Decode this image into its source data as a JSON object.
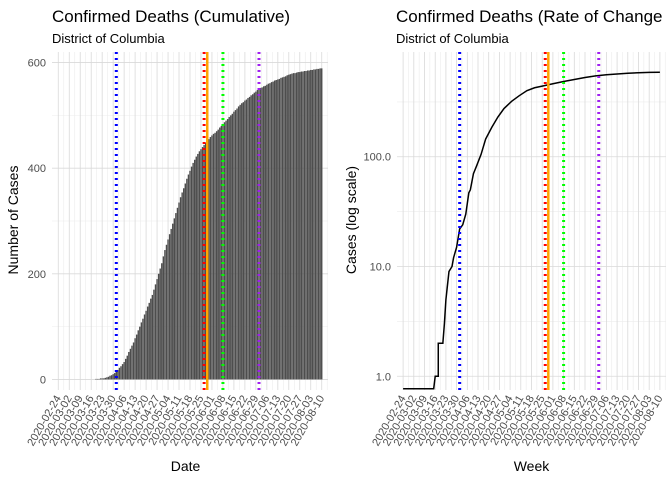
{
  "colors": {
    "bar": "#4d4d4d",
    "line": "#000000",
    "grid_major": "#d9d9d9",
    "grid_minor": "#ececec",
    "vlines": [
      "#0000ff",
      "#ff0000",
      "#ffa500",
      "#00ff00",
      "#a020f0"
    ]
  },
  "chart_data": [
    {
      "type": "bar",
      "title": "Confirmed Deaths (Cumulative)",
      "subtitle": "District of Columbia",
      "xlabel": "Date",
      "ylabel": "Number of Cases",
      "ylim": [
        -20,
        620
      ],
      "yticks": [
        0,
        200,
        400,
        600
      ],
      "ytick_labels": [
        "0",
        "200",
        "400",
        "600"
      ],
      "xlim": [
        "2020-02-20",
        "2020-08-14"
      ],
      "x_tick_labels": [
        "2020-02-24",
        "2020-03-02",
        "2020-03-09",
        "2020-03-16",
        "2020-03-23",
        "2020-03-30",
        "2020-04-06",
        "2020-04-13",
        "2020-04-20",
        "2020-04-27",
        "2020-05-04",
        "2020-05-11",
        "2020-05-18",
        "2020-05-25",
        "2020-06-01",
        "2020-06-08",
        "2020-06-15",
        "2020-06-22",
        "2020-06-29",
        "2020-07-06",
        "2020-07-13",
        "2020-07-20",
        "2020-07-27",
        "2020-08-03",
        "2020-08-10"
      ],
      "series_points": [
        [
          "2020-02-24",
          0
        ],
        [
          "2020-03-18",
          0
        ],
        [
          "2020-03-20",
          1
        ],
        [
          "2020-03-24",
          2
        ],
        [
          "2020-03-27",
          5
        ],
        [
          "2020-03-29",
          8
        ],
        [
          "2020-03-31",
          12
        ],
        [
          "2020-04-02",
          18
        ],
        [
          "2020-04-04",
          25
        ],
        [
          "2020-04-06",
          33
        ],
        [
          "2020-04-08",
          45
        ],
        [
          "2020-04-10",
          58
        ],
        [
          "2020-04-12",
          70
        ],
        [
          "2020-04-14",
          85
        ],
        [
          "2020-04-16",
          100
        ],
        [
          "2020-04-18",
          115
        ],
        [
          "2020-04-20",
          130
        ],
        [
          "2020-04-22",
          145
        ],
        [
          "2020-04-24",
          160
        ],
        [
          "2020-04-26",
          180
        ],
        [
          "2020-04-28",
          200
        ],
        [
          "2020-04-30",
          220
        ],
        [
          "2020-05-02",
          245
        ],
        [
          "2020-05-04",
          265
        ],
        [
          "2020-05-06",
          285
        ],
        [
          "2020-05-08",
          305
        ],
        [
          "2020-05-10",
          325
        ],
        [
          "2020-05-12",
          345
        ],
        [
          "2020-05-14",
          362
        ],
        [
          "2020-05-16",
          380
        ],
        [
          "2020-05-18",
          395
        ],
        [
          "2020-05-20",
          410
        ],
        [
          "2020-05-22",
          422
        ],
        [
          "2020-05-24",
          432
        ],
        [
          "2020-05-26",
          440
        ],
        [
          "2020-05-28",
          448
        ],
        [
          "2020-05-30",
          455
        ],
        [
          "2020-06-01",
          462
        ],
        [
          "2020-06-04",
          470
        ],
        [
          "2020-06-07",
          480
        ],
        [
          "2020-06-10",
          490
        ],
        [
          "2020-06-13",
          500
        ],
        [
          "2020-06-16",
          510
        ],
        [
          "2020-06-19",
          520
        ],
        [
          "2020-06-22",
          528
        ],
        [
          "2020-06-25",
          535
        ],
        [
          "2020-06-28",
          543
        ],
        [
          "2020-07-01",
          550
        ],
        [
          "2020-07-05",
          556
        ],
        [
          "2020-07-09",
          563
        ],
        [
          "2020-07-13",
          568
        ],
        [
          "2020-07-17",
          573
        ],
        [
          "2020-07-21",
          578
        ],
        [
          "2020-07-25",
          581
        ],
        [
          "2020-07-29",
          583
        ],
        [
          "2020-08-02",
          585
        ],
        [
          "2020-08-06",
          587
        ],
        [
          "2020-08-10",
          589
        ]
      ],
      "vlines": [
        "2020-04-01",
        "2020-05-27",
        "2020-05-29",
        "2020-06-08",
        "2020-07-01"
      ]
    },
    {
      "type": "line",
      "title": "Confirmed Deaths (Rate of Change",
      "subtitle": "District of Columbia",
      "xlabel": "Week",
      "ylabel": "Cases (log scale)",
      "yscale": "log",
      "ylim": [
        0.75,
        900
      ],
      "yticks": [
        1,
        10,
        100
      ],
      "ytick_labels": [
        "1.0",
        "10.0",
        "100.0"
      ],
      "xlim": [
        "2020-02-20",
        "2020-08-14"
      ],
      "x_tick_labels": [
        "2020-02-24",
        "2020-03-02",
        "2020-03-09",
        "2020-03-16",
        "2020-03-23",
        "2020-03-30",
        "2020-04-06",
        "2020-04-13",
        "2020-04-20",
        "2020-04-27",
        "2020-05-04",
        "2020-05-11",
        "2020-05-18",
        "2020-05-25",
        "2020-06-01",
        "2020-06-08",
        "2020-06-15",
        "2020-06-22",
        "2020-06-29",
        "2020-07-06",
        "2020-07-13",
        "2020-07-20",
        "2020-07-27",
        "2020-08-03",
        "2020-08-10"
      ],
      "series_points": [
        [
          "2020-02-24",
          0.77
        ],
        [
          "2020-03-15",
          0.77
        ],
        [
          "2020-03-16",
          1.0
        ],
        [
          "2020-03-18",
          1.0
        ],
        [
          "2020-03-18",
          2.0
        ],
        [
          "2020-03-21",
          2.0
        ],
        [
          "2020-03-22",
          3.0
        ],
        [
          "2020-03-23",
          5.0
        ],
        [
          "2020-03-25",
          9.0
        ],
        [
          "2020-03-27",
          10.0
        ],
        [
          "2020-03-28",
          12.0
        ],
        [
          "2020-03-30",
          15.0
        ],
        [
          "2020-04-01",
          22.0
        ],
        [
          "2020-04-03",
          24.0
        ],
        [
          "2020-04-05",
          30.0
        ],
        [
          "2020-04-07",
          47.0
        ],
        [
          "2020-04-08",
          50.0
        ],
        [
          "2020-04-10",
          70.0
        ],
        [
          "2020-04-12",
          82.0
        ],
        [
          "2020-04-15",
          105.0
        ],
        [
          "2020-04-18",
          145.0
        ],
        [
          "2020-04-22",
          185.0
        ],
        [
          "2020-04-26",
          230.0
        ],
        [
          "2020-04-30",
          275.0
        ],
        [
          "2020-05-05",
          320.0
        ],
        [
          "2020-05-10",
          360.0
        ],
        [
          "2020-05-15",
          400.0
        ],
        [
          "2020-05-20",
          425.0
        ],
        [
          "2020-05-25",
          440.0
        ],
        [
          "2020-06-01",
          462.0
        ],
        [
          "2020-06-08",
          485.0
        ],
        [
          "2020-06-15",
          505.0
        ],
        [
          "2020-06-22",
          527.0
        ],
        [
          "2020-06-29",
          545.0
        ],
        [
          "2020-07-06",
          558.0
        ],
        [
          "2020-07-13",
          568.0
        ],
        [
          "2020-07-20",
          577.0
        ],
        [
          "2020-07-27",
          583.0
        ],
        [
          "2020-08-03",
          587.0
        ],
        [
          "2020-08-10",
          589.0
        ]
      ],
      "vlines": [
        "2020-04-01",
        "2020-05-27",
        "2020-05-29",
        "2020-06-08",
        "2020-07-01"
      ]
    }
  ]
}
